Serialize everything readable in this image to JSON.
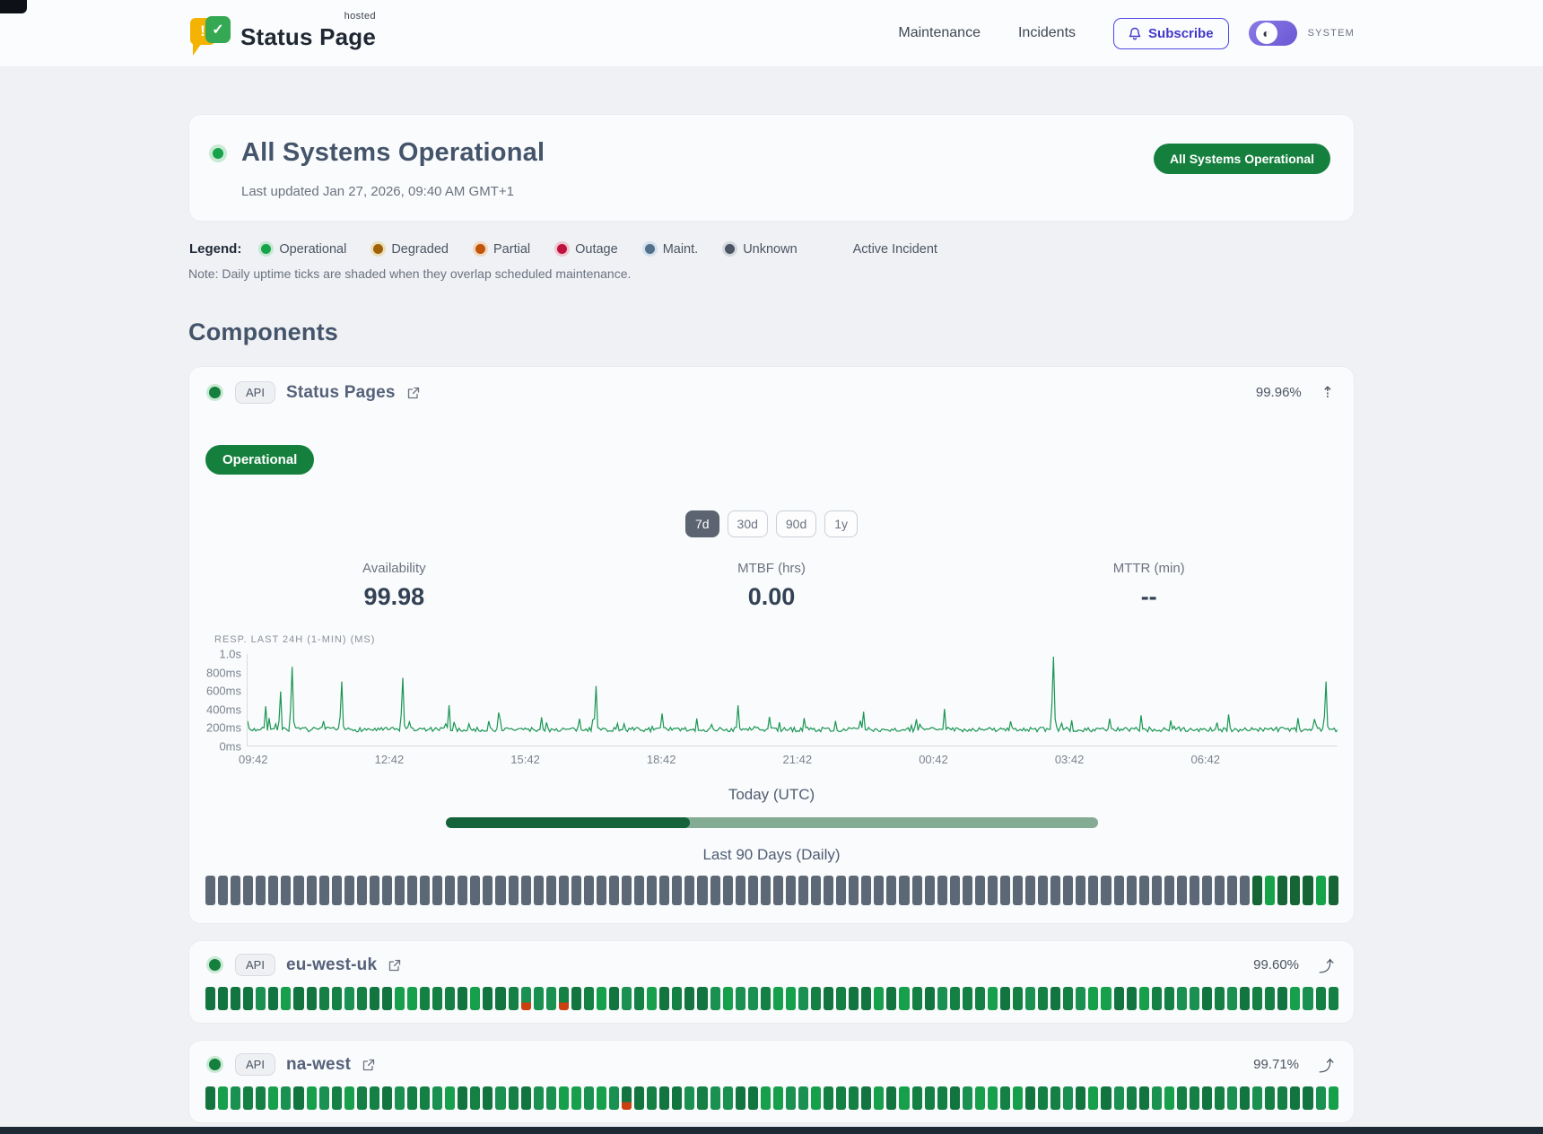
{
  "header": {
    "brand": {
      "name": "Status Page",
      "superscript": "hosted"
    },
    "nav": [
      {
        "label": "Maintenance"
      },
      {
        "label": "Incidents"
      }
    ],
    "subscribe_label": "Subscribe",
    "theme_label": "SYSTEM"
  },
  "hero": {
    "title": "All Systems Operational",
    "last_updated": "Last updated Jan 27, 2026, 09:40 AM GMT+1",
    "badge": "All Systems Operational"
  },
  "legend": {
    "label": "Legend:",
    "items": [
      {
        "label": "Operational",
        "color": "#16a34a",
        "ring": "#c4e7d1"
      },
      {
        "label": "Degraded",
        "color": "#a16207",
        "ring": "#eadfb9"
      },
      {
        "label": "Partial",
        "color": "#c2540a",
        "ring": "#f1d7c0"
      },
      {
        "label": "Outage",
        "color": "#be123c",
        "ring": "#efc5d1"
      },
      {
        "label": "Maint.",
        "color": "#54708a",
        "ring": "#d2e1ee"
      },
      {
        "label": "Unknown",
        "color": "#4b5563",
        "ring": "#d4d7dc"
      }
    ],
    "active_incident_label": "Active Incident",
    "note": "Note: Daily uptime ticks are shaded when they overlap scheduled maintenance."
  },
  "components": {
    "title": "Components",
    "expanded": {
      "tag": "API",
      "name": "Status Pages",
      "uptime": "99.96%",
      "collapse_icon": "⇡",
      "status_badge": "Operational",
      "ranges": [
        "7d",
        "30d",
        "90d",
        "1y"
      ],
      "active_range": "7d",
      "stats": [
        {
          "label": "Availability",
          "value": "99.98"
        },
        {
          "label": "MTBF (hrs)",
          "value": "0.00"
        },
        {
          "label": "MTTR (min)",
          "value": "--"
        }
      ],
      "today_label": "Today (UTC)",
      "today_progress": 0.375,
      "history_label": "Last 90 Days (Daily)",
      "history": {
        "days": 90,
        "gray_days": 83,
        "tail_pattern": [
          "dark",
          "bright",
          "dark",
          "dark",
          "dark",
          "bright",
          "dark"
        ]
      }
    },
    "chart_data": {
      "type": "line",
      "title": "RESP. LAST 24H (1-MIN) (MS)",
      "ylabel": "response time",
      "y_ticks": [
        {
          "label": "1.0s",
          "value": 1000
        },
        {
          "label": "800ms",
          "value": 800
        },
        {
          "label": "600ms",
          "value": 600
        },
        {
          "label": "400ms",
          "value": 400
        },
        {
          "label": "200ms",
          "value": 200
        },
        {
          "label": "0ms",
          "value": 0
        }
      ],
      "x_ticks": [
        "09:42",
        "12:42",
        "15:42",
        "18:42",
        "21:42",
        "00:42",
        "03:42",
        "06:42"
      ],
      "x_tick_start_frac": 0.006,
      "x_tick_step_frac": 0.1247,
      "ylim": [
        0,
        1000
      ],
      "baseline_ms": 170,
      "noise_ms": 50,
      "spikes": [
        {
          "t": 0.016,
          "v": 430
        },
        {
          "t": 0.031,
          "v": 590
        },
        {
          "t": 0.041,
          "v": 860
        },
        {
          "t": 0.087,
          "v": 700
        },
        {
          "t": 0.142,
          "v": 740
        },
        {
          "t": 0.185,
          "v": 440
        },
        {
          "t": 0.231,
          "v": 360
        },
        {
          "t": 0.27,
          "v": 310
        },
        {
          "t": 0.32,
          "v": 650
        },
        {
          "t": 0.38,
          "v": 350
        },
        {
          "t": 0.45,
          "v": 440
        },
        {
          "t": 0.51,
          "v": 300
        },
        {
          "t": 0.565,
          "v": 370
        },
        {
          "t": 0.64,
          "v": 400
        },
        {
          "t": 0.74,
          "v": 970
        },
        {
          "t": 0.82,
          "v": 330
        },
        {
          "t": 0.9,
          "v": 340
        },
        {
          "t": 0.99,
          "v": 700
        }
      ],
      "line_color": "#1a9654",
      "grid": false,
      "legend_position": "none"
    },
    "rows": [
      {
        "tag": "API",
        "name": "eu-west-uk",
        "uptime": "99.60%",
        "expand_icon": "⤴",
        "days": 90,
        "red_indices": [
          25,
          28
        ]
      },
      {
        "tag": "API",
        "name": "na-west",
        "uptime": "99.71%",
        "expand_icon": "⤴",
        "days": 90,
        "red_indices": [
          33
        ]
      }
    ]
  },
  "colors": {
    "accent_green": "#15803d",
    "bright_green": "#17a34a",
    "dark_green": "#166534",
    "today_done": "#15633a",
    "today_rest": "#84ab94",
    "gray_tick": "#5d6876",
    "red_mark": "#c9410f",
    "green_tick_shades": [
      "#17a04b",
      "#148044",
      "#12753f",
      "#1a9150"
    ]
  }
}
